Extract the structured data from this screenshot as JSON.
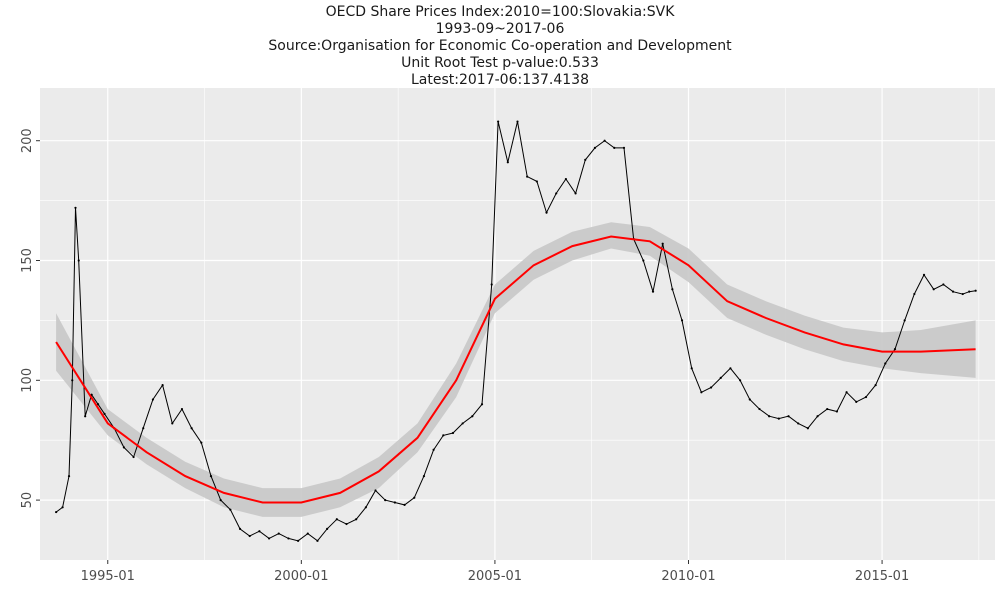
{
  "header": {
    "title": "OECD Share Prices Index:2010=100:Slovakia:SVK",
    "period": "1993-09~2017-06",
    "source": "Source:Organisation for Economic Co-operation and Development",
    "unit_root": "Unit Root Test p-value:0.533",
    "latest": "Latest:2017-06:137.4138"
  },
  "chart_data": {
    "type": "line",
    "title": "OECD Share Prices Index:2010=100:Slovakia:SVK",
    "xlabel": "",
    "ylabel": "",
    "x_ticks": [
      "1995-01",
      "2000-01",
      "2005-01",
      "2010-01",
      "2015-01"
    ],
    "y_ticks": [
      50,
      100,
      150,
      200
    ],
    "xlim": [
      "1993-04",
      "2017-12"
    ],
    "ylim": [
      25,
      222
    ],
    "grid": true,
    "legend": "none",
    "colors": {
      "series": "#000000",
      "smooth": "#ff0000",
      "band": "#c8c8c8",
      "panel": "#ebebeb",
      "grid": "#ffffff"
    },
    "series": [
      {
        "values": [
          [
            "1993-09",
            45
          ],
          [
            "1993-11",
            47
          ],
          [
            "1994-01",
            60
          ],
          [
            "1994-02",
            100
          ],
          [
            "1994-03",
            172
          ],
          [
            "1994-04",
            150
          ],
          [
            "1994-06",
            85
          ],
          [
            "1994-08",
            94
          ],
          [
            "1994-10",
            90
          ],
          [
            "1994-12",
            86
          ],
          [
            "1995-03",
            80
          ],
          [
            "1995-06",
            72
          ],
          [
            "1995-09",
            68
          ],
          [
            "1995-12",
            80
          ],
          [
            "1996-03",
            92
          ],
          [
            "1996-06",
            98
          ],
          [
            "1996-09",
            82
          ],
          [
            "1996-12",
            88
          ],
          [
            "1997-03",
            80
          ],
          [
            "1997-06",
            74
          ],
          [
            "1997-09",
            60
          ],
          [
            "1997-12",
            50
          ],
          [
            "1998-03",
            46
          ],
          [
            "1998-06",
            38
          ],
          [
            "1998-09",
            35
          ],
          [
            "1998-12",
            37
          ],
          [
            "1999-03",
            34
          ],
          [
            "1999-06",
            36
          ],
          [
            "1999-09",
            34
          ],
          [
            "1999-12",
            33
          ],
          [
            "2000-03",
            36
          ],
          [
            "2000-06",
            33
          ],
          [
            "2000-09",
            38
          ],
          [
            "2000-12",
            42
          ],
          [
            "2001-03",
            40
          ],
          [
            "2001-06",
            42
          ],
          [
            "2001-09",
            47
          ],
          [
            "2001-12",
            54
          ],
          [
            "2002-03",
            50
          ],
          [
            "2002-06",
            49
          ],
          [
            "2002-09",
            48
          ],
          [
            "2002-12",
            51
          ],
          [
            "2003-03",
            60
          ],
          [
            "2003-06",
            71
          ],
          [
            "2003-09",
            77
          ],
          [
            "2003-12",
            78
          ],
          [
            "2004-03",
            82
          ],
          [
            "2004-06",
            85
          ],
          [
            "2004-09",
            90
          ],
          [
            "2004-12",
            140
          ],
          [
            "2005-02",
            208
          ],
          [
            "2005-05",
            191
          ],
          [
            "2005-08",
            208
          ],
          [
            "2005-11",
            185
          ],
          [
            "2006-02",
            183
          ],
          [
            "2006-05",
            170
          ],
          [
            "2006-08",
            178
          ],
          [
            "2006-11",
            184
          ],
          [
            "2007-02",
            178
          ],
          [
            "2007-05",
            192
          ],
          [
            "2007-08",
            197
          ],
          [
            "2007-11",
            200
          ],
          [
            "2008-02",
            197
          ],
          [
            "2008-05",
            197
          ],
          [
            "2008-08",
            159
          ],
          [
            "2008-11",
            150
          ],
          [
            "2009-02",
            137
          ],
          [
            "2009-05",
            157
          ],
          [
            "2009-08",
            138
          ],
          [
            "2009-11",
            125
          ],
          [
            "2010-02",
            105
          ],
          [
            "2010-05",
            95
          ],
          [
            "2010-08",
            97
          ],
          [
            "2010-11",
            101
          ],
          [
            "2011-02",
            105
          ],
          [
            "2011-05",
            100
          ],
          [
            "2011-08",
            92
          ],
          [
            "2011-11",
            88
          ],
          [
            "2012-02",
            85
          ],
          [
            "2012-05",
            84
          ],
          [
            "2012-08",
            85
          ],
          [
            "2012-11",
            82
          ],
          [
            "2013-02",
            80
          ],
          [
            "2013-05",
            85
          ],
          [
            "2013-08",
            88
          ],
          [
            "2013-11",
            87
          ],
          [
            "2014-02",
            95
          ],
          [
            "2014-05",
            91
          ],
          [
            "2014-08",
            93
          ],
          [
            "2014-11",
            98
          ],
          [
            "2015-02",
            107
          ],
          [
            "2015-05",
            113
          ],
          [
            "2015-08",
            125
          ],
          [
            "2015-11",
            136
          ],
          [
            "2016-02",
            144
          ],
          [
            "2016-05",
            138
          ],
          [
            "2016-08",
            140
          ],
          [
            "2016-11",
            137
          ],
          [
            "2017-02",
            136
          ],
          [
            "2017-04",
            137
          ],
          [
            "2017-06",
            137.4
          ]
        ]
      }
    ],
    "smooth": {
      "x": [
        "1993-09",
        "1995-01",
        "1996-01",
        "1997-01",
        "1998-01",
        "1999-01",
        "2000-01",
        "2001-01",
        "2002-01",
        "2003-01",
        "2004-01",
        "2005-01",
        "2006-01",
        "2007-01",
        "2008-01",
        "2009-01",
        "2010-01",
        "2011-01",
        "2012-01",
        "2013-01",
        "2014-01",
        "2015-01",
        "2016-01",
        "2017-06"
      ],
      "fit": [
        116,
        82,
        70,
        60,
        53,
        49,
        49,
        53,
        62,
        76,
        100,
        134,
        148,
        156,
        160,
        158,
        148,
        133,
        126,
        120,
        115,
        112,
        112,
        113
      ],
      "lower": [
        104,
        77,
        65,
        55,
        47,
        43,
        43,
        47,
        55,
        70,
        93,
        128,
        142,
        150,
        155,
        152,
        141,
        126,
        119,
        113,
        108,
        105,
        103,
        101
      ],
      "upper": [
        128,
        88,
        76,
        66,
        59,
        55,
        55,
        59,
        68,
        82,
        107,
        140,
        154,
        162,
        166,
        164,
        155,
        140,
        133,
        127,
        122,
        120,
        121,
        125
      ]
    }
  }
}
